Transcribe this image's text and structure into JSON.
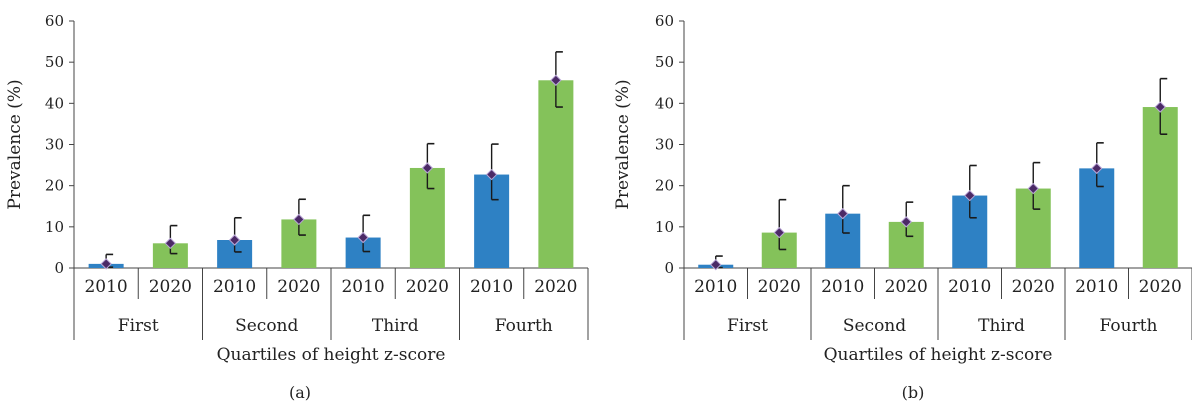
{
  "chart_data": [
    {
      "type": "bar",
      "panel_label": "(a)",
      "ylabel": "Prevalence (%)",
      "xlabel": "Quartiles of height z-score",
      "ylim": [
        0,
        60
      ],
      "yticks": [
        "0",
        "10",
        "20",
        "30",
        "40",
        "50",
        "60"
      ],
      "groups": [
        "First",
        "Second",
        "Third",
        "Fourth"
      ],
      "years": [
        "2010",
        "2020"
      ],
      "bars": [
        {
          "group": "First",
          "year": "2010",
          "value": 1.0,
          "ci_low": 0.2,
          "ci_high": 3.3
        },
        {
          "group": "First",
          "year": "2020",
          "value": 6.0,
          "ci_low": 3.5,
          "ci_high": 10.3
        },
        {
          "group": "Second",
          "year": "2010",
          "value": 6.8,
          "ci_low": 3.9,
          "ci_high": 12.2
        },
        {
          "group": "Second",
          "year": "2020",
          "value": 11.8,
          "ci_low": 8.0,
          "ci_high": 16.7
        },
        {
          "group": "Third",
          "year": "2010",
          "value": 7.4,
          "ci_low": 4.0,
          "ci_high": 12.8
        },
        {
          "group": "Third",
          "year": "2020",
          "value": 24.3,
          "ci_low": 19.3,
          "ci_high": 30.2
        },
        {
          "group": "Fourth",
          "year": "2010",
          "value": 22.7,
          "ci_low": 16.6,
          "ci_high": 30.1
        },
        {
          "group": "Fourth",
          "year": "2020",
          "value": 45.6,
          "ci_low": 39.1,
          "ci_high": 52.5
        }
      ]
    },
    {
      "type": "bar",
      "panel_label": "(b)",
      "ylabel": "Prevalence (%)",
      "xlabel": "Quartiles of height z-score",
      "ylim": [
        0,
        60
      ],
      "yticks": [
        "0",
        "10",
        "20",
        "30",
        "40",
        "50",
        "60"
      ],
      "groups": [
        "First",
        "Second",
        "Third",
        "Fourth"
      ],
      "years": [
        "2010",
        "2020"
      ],
      "bars": [
        {
          "group": "First",
          "year": "2010",
          "value": 0.8,
          "ci_low": 0.1,
          "ci_high": 2.9
        },
        {
          "group": "First",
          "year": "2020",
          "value": 8.6,
          "ci_low": 4.5,
          "ci_high": 16.6
        },
        {
          "group": "Second",
          "year": "2010",
          "value": 13.2,
          "ci_low": 8.5,
          "ci_high": 20.0
        },
        {
          "group": "Second",
          "year": "2020",
          "value": 11.2,
          "ci_low": 7.7,
          "ci_high": 16.0
        },
        {
          "group": "Third",
          "year": "2010",
          "value": 17.6,
          "ci_low": 12.2,
          "ci_high": 24.9
        },
        {
          "group": "Third",
          "year": "2020",
          "value": 19.3,
          "ci_low": 14.3,
          "ci_high": 25.6
        },
        {
          "group": "Fourth",
          "year": "2010",
          "value": 24.2,
          "ci_low": 19.8,
          "ci_high": 30.4
        },
        {
          "group": "Fourth",
          "year": "2020",
          "value": 39.1,
          "ci_low": 32.5,
          "ci_high": 46.0
        }
      ]
    }
  ],
  "colors": {
    "bar_2010": "#2e81c4",
    "bar_2020": "#84c25a",
    "marker_fill": "#4b2a66",
    "marker_stroke": "#b9a6d6",
    "error_bar": "#1a1a1a"
  }
}
